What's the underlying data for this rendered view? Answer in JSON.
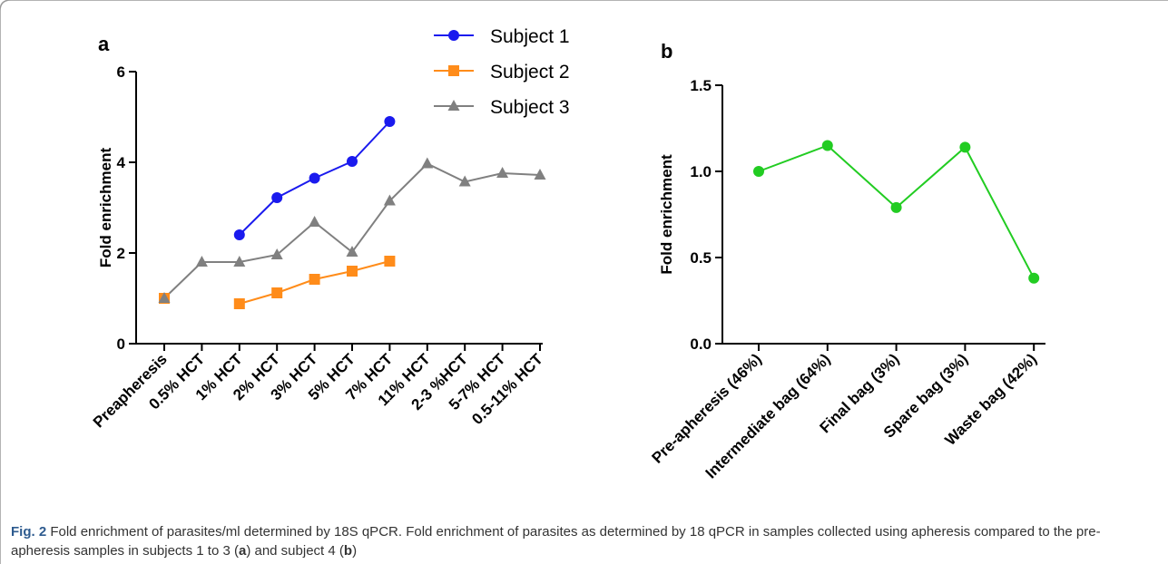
{
  "caption": {
    "figure_label": "Fig. 2",
    "text": "Fold enrichment of parasites/ml determined by 18S qPCR. Fold enrichment of parasites as determined by 18 qPCR in samples collected using apheresis compared to the pre-apheresis samples in subjects 1 to 3 (a) and subject 4 (b)"
  },
  "chart_data": [
    {
      "type": "line",
      "panel_label": "a",
      "title": "",
      "xlabel": "",
      "ylabel": "Fold enrichment",
      "ylim": [
        0,
        6
      ],
      "yticks": [
        0,
        2,
        4,
        6
      ],
      "grid": false,
      "legend_position": "top-center",
      "categories": [
        "Preapheresis",
        "0.5% HCT",
        "1% HCT",
        "2% HCT",
        "3% HCT",
        "5% HCT",
        "7% HCT",
        "11% HCT",
        "2-3 %HCT",
        "5-7% HCT",
        "0.5-11% HCT"
      ],
      "series": [
        {
          "name": "Subject 1",
          "color": "#1a1aee",
          "marker": "circle",
          "values": [
            1.0,
            null,
            2.4,
            3.22,
            3.65,
            4.02,
            4.9,
            null,
            null,
            null,
            null
          ]
        },
        {
          "name": "Subject 2",
          "color": "#ff8c1a",
          "marker": "square",
          "values": [
            1.0,
            null,
            0.88,
            1.12,
            1.42,
            1.6,
            1.82,
            null,
            null,
            null,
            null
          ]
        },
        {
          "name": "Subject 3",
          "color": "#808080",
          "marker": "triangle",
          "values": [
            1.0,
            1.8,
            1.8,
            1.96,
            2.68,
            2.02,
            3.15,
            3.97,
            3.57,
            3.76,
            3.72
          ]
        }
      ]
    },
    {
      "type": "line",
      "panel_label": "b",
      "title": "",
      "xlabel": "",
      "ylabel": "Fold enrichment",
      "ylim": [
        0,
        1.5
      ],
      "yticks": [
        "0.0",
        "0.5",
        "1.0",
        "1.5"
      ],
      "grid": false,
      "categories": [
        "Pre-apheresis (46%)",
        "Intermediate bag (64%)",
        "Final bag (3%)",
        "Spare bag (3%)",
        "Waste bag (42%)"
      ],
      "series": [
        {
          "color": "#22cc22",
          "marker": "circle",
          "values": [
            1.0,
            1.15,
            0.79,
            1.14,
            0.38
          ]
        }
      ]
    }
  ]
}
